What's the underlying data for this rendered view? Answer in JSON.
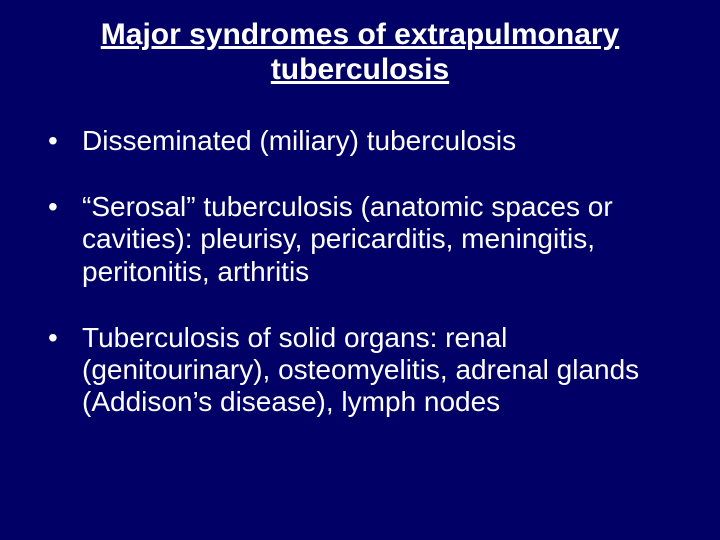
{
  "slide": {
    "background_color": "#000066",
    "text_color": "#ffffff",
    "font_family": "Arial",
    "title": {
      "text": "Major syndromes of extrapulmonary tuberculosis",
      "fontsize": 30,
      "fontweight": "bold",
      "underline": true,
      "align": "center"
    },
    "bullets": {
      "fontsize": 28,
      "marker": "•",
      "items": [
        {
          "text": "Disseminated (miliary) tuberculosis"
        },
        {
          "text": "“Serosal” tuberculosis (anatomic spaces or cavities): pleurisy, pericarditis, meningitis, peritonitis, arthritis"
        },
        {
          "text": "Tuberculosis of solid organs: renal (genitourinary), osteomyelitis, adrenal glands (Addison’s disease), lymph nodes"
        }
      ]
    }
  }
}
